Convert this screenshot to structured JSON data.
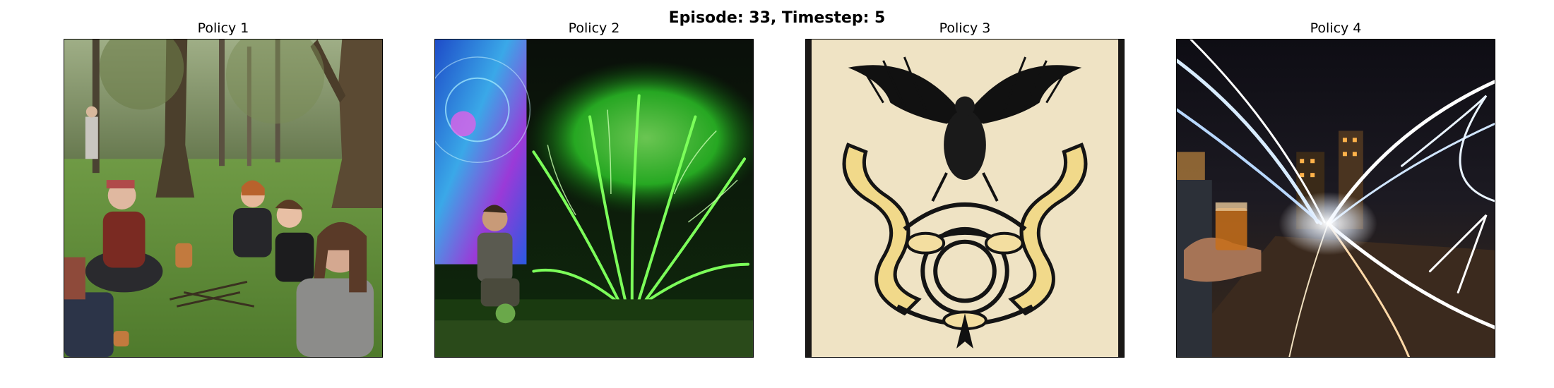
{
  "figure": {
    "suptitle": "Episode: 33, Timestep: 5",
    "panels": [
      {
        "title": "Policy 1",
        "image": "forest-gathering-photo"
      },
      {
        "title": "Policy 2",
        "image": "glowing-green-tree-photo"
      },
      {
        "title": "Policy 3",
        "image": "heraldic-eagle-knotwork-drawing"
      },
      {
        "title": "Policy 4",
        "image": "night-street-light-trails-photo"
      }
    ]
  }
}
